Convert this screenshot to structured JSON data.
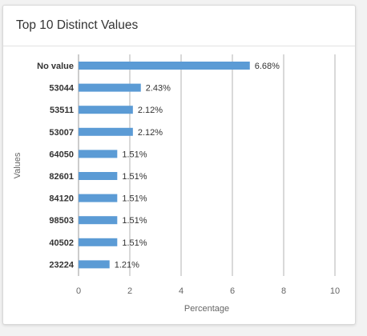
{
  "card": {
    "title": "Top 10 Distinct Values"
  },
  "colors": {
    "bar": "#5b9bd5",
    "grid": "#b3b3b3",
    "text": "#333333",
    "muted": "#666666"
  },
  "chart_data": {
    "type": "bar",
    "orientation": "horizontal",
    "categories": [
      "No value",
      "53044",
      "53511",
      "53007",
      "64050",
      "82601",
      "84120",
      "98503",
      "40502",
      "23224"
    ],
    "values": [
      6.68,
      2.43,
      2.12,
      2.12,
      1.51,
      1.51,
      1.51,
      1.51,
      1.51,
      1.21
    ],
    "data_labels": [
      "6.68%",
      "2.43%",
      "2.12%",
      "2.12%",
      "1.51%",
      "1.51%",
      "1.51%",
      "1.51%",
      "1.51%",
      "1.21%"
    ],
    "xlabel": "Percentage",
    "ylabel": "Values",
    "xlim": [
      0,
      10
    ],
    "xticks": [
      0,
      2,
      4,
      6,
      8,
      10
    ],
    "grid": true
  }
}
